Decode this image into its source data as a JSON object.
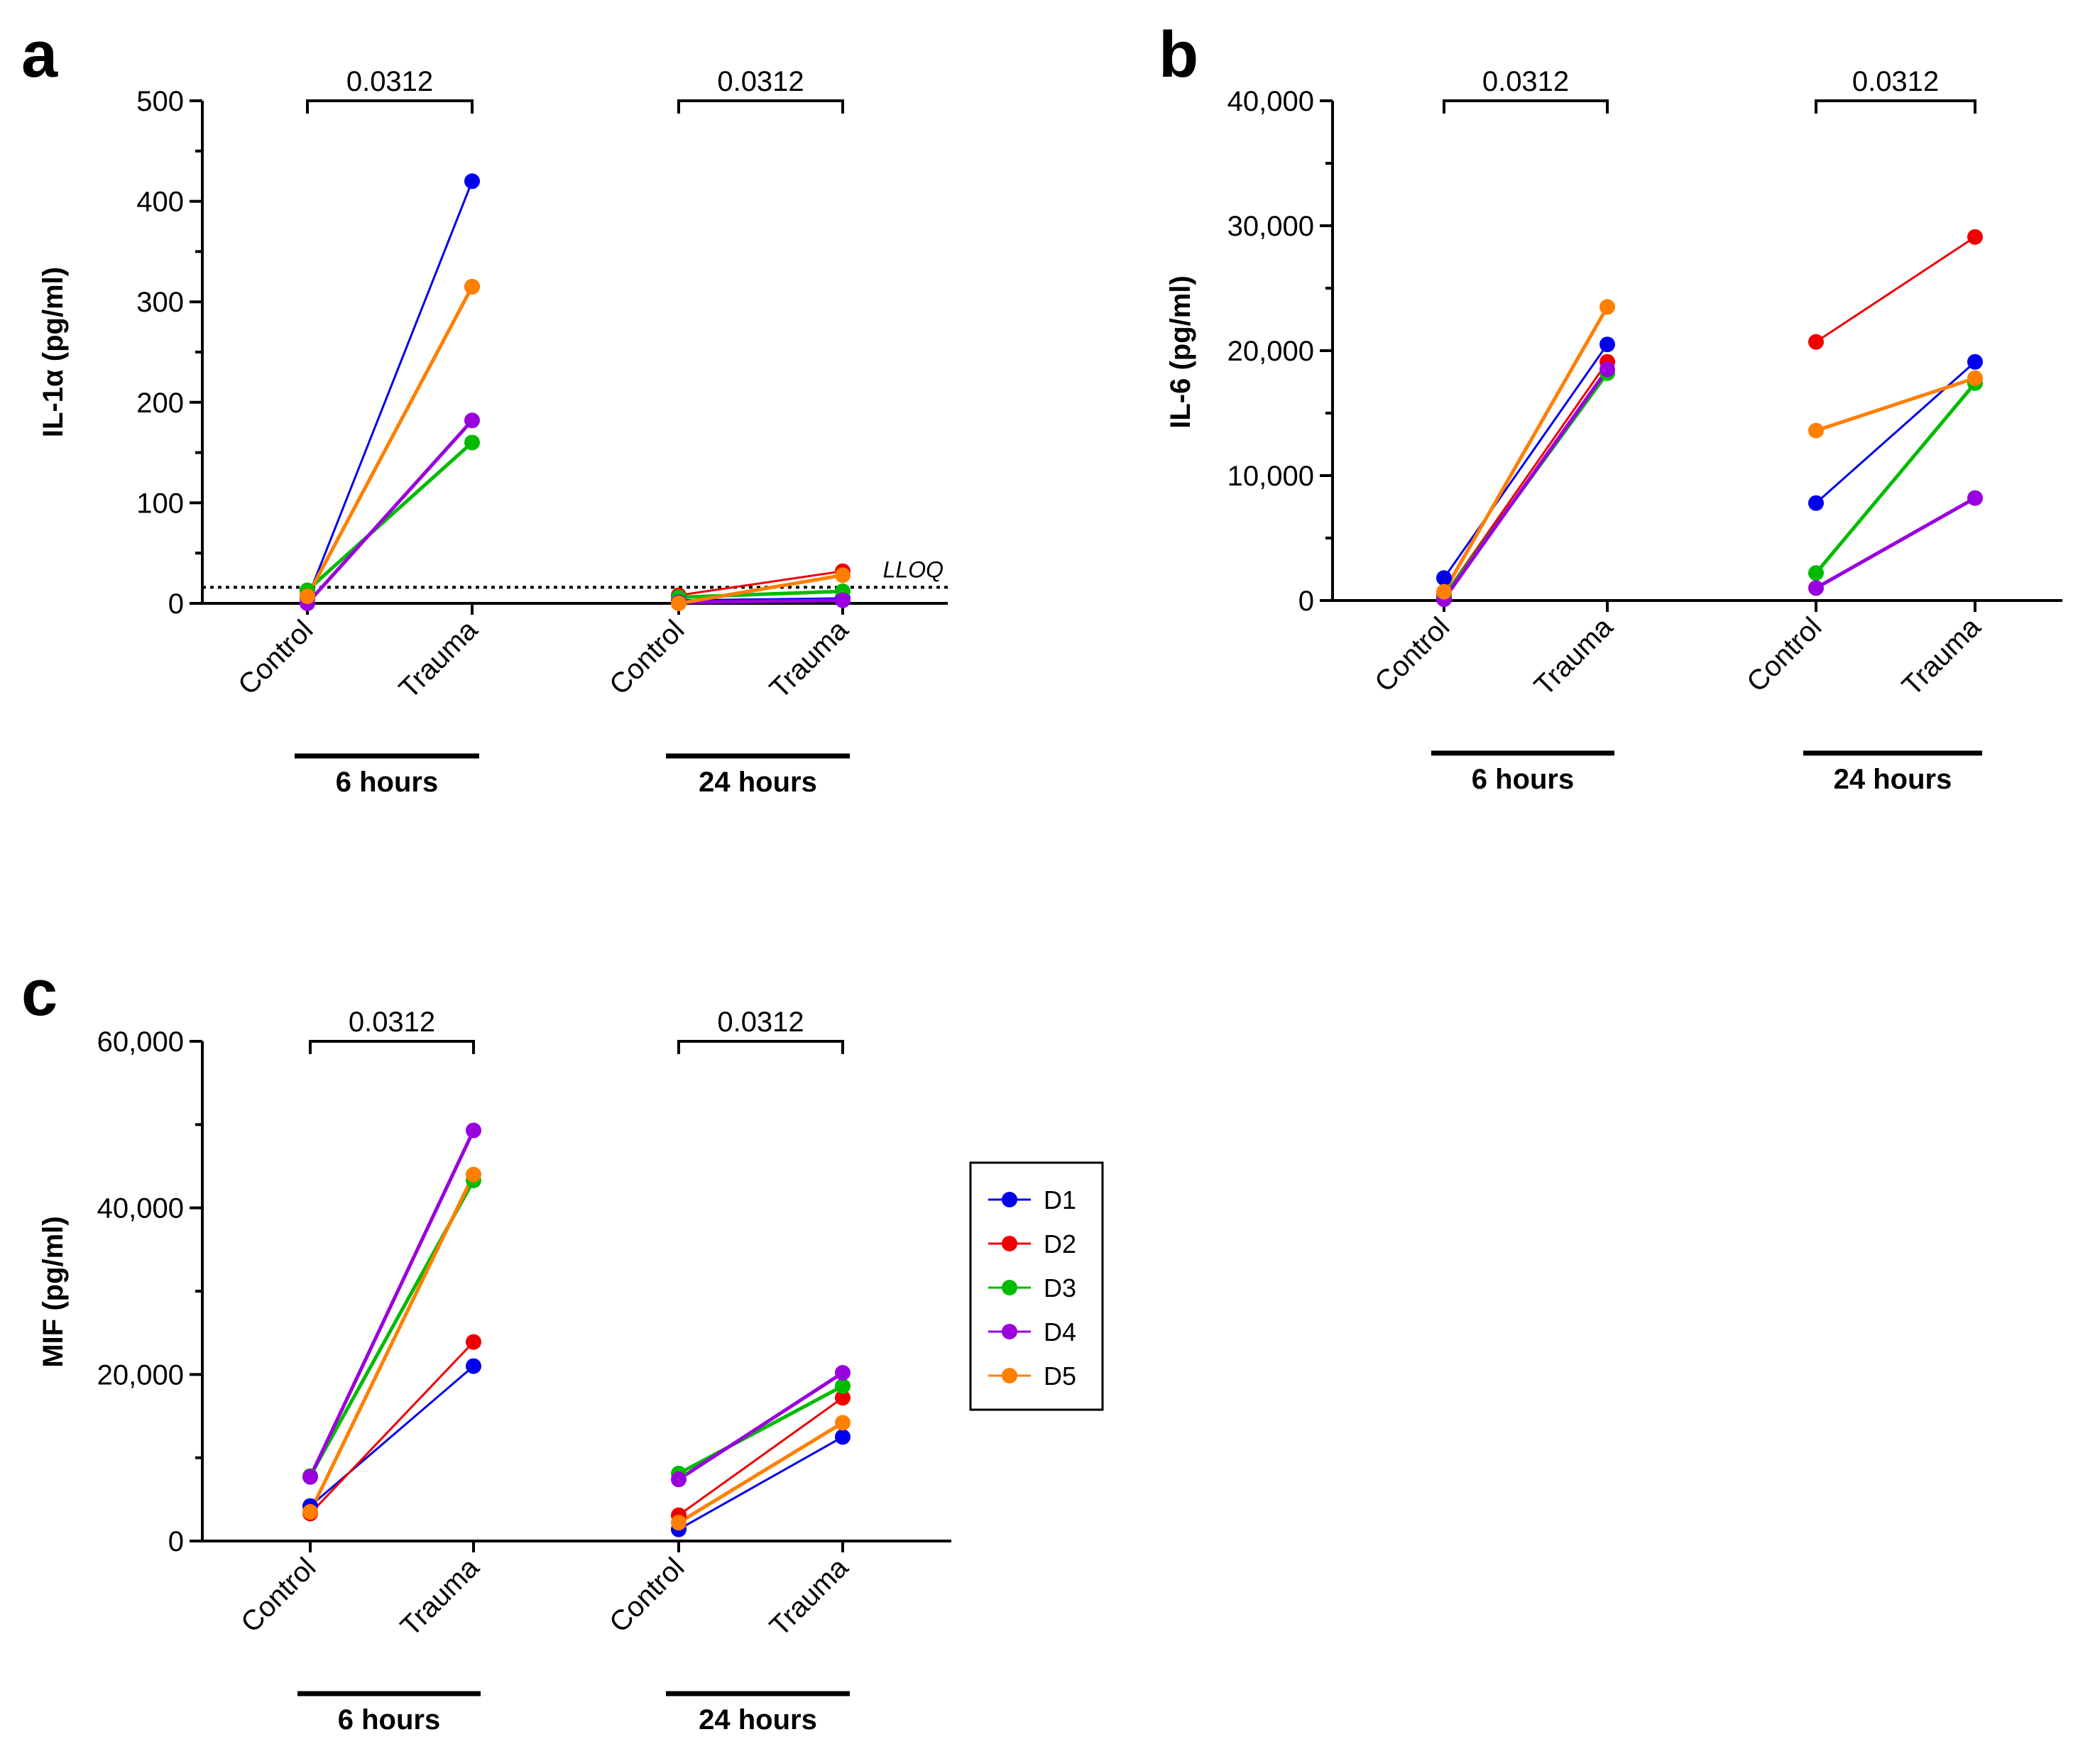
{
  "legend": {
    "entries": [
      {
        "name": "D1",
        "color": "#0000ee"
      },
      {
        "name": "D2",
        "color": "#ee0000"
      },
      {
        "name": "D3",
        "color": "#00bb00"
      },
      {
        "name": "D4",
        "color": "#9900dd"
      },
      {
        "name": "D5",
        "color": "#ff7f00"
      }
    ]
  },
  "chart_data": [
    {
      "panel": "a",
      "type": "line",
      "ylabel": "IL-1α (pg/ml)",
      "ylim": [
        0,
        500
      ],
      "yticks": [
        "0",
        "100",
        "200",
        "300",
        "400",
        "500"
      ],
      "groups": [
        {
          "label": "6 hours",
          "categories": [
            "Control",
            "Trauma"
          ],
          "pvalue": "0.0312"
        },
        {
          "label": "24 hours",
          "categories": [
            "Control",
            "Trauma"
          ],
          "pvalue": "0.0312"
        }
      ],
      "reference_line": {
        "label": "LLOQ",
        "value": 16
      },
      "series": [
        {
          "name": "D1",
          "values": [
            5,
            420,
            3,
            5
          ]
        },
        {
          "name": "D2",
          "values": [
            8,
            315,
            8,
            32
          ]
        },
        {
          "name": "D3",
          "values": [
            13,
            160,
            6,
            12
          ]
        },
        {
          "name": "D4",
          "values": [
            0,
            182,
            1,
            3
          ]
        },
        {
          "name": "D5",
          "values": [
            7,
            315,
            0,
            28
          ]
        }
      ]
    },
    {
      "panel": "b",
      "type": "line",
      "ylabel": "IL-6 (pg/ml)",
      "ylim": [
        0,
        40000
      ],
      "yticks": [
        "0",
        "10,000",
        "20,000",
        "30,000",
        "40,000"
      ],
      "groups": [
        {
          "label": "6 hours",
          "categories": [
            "Control",
            "Trauma"
          ],
          "pvalue": "0.0312"
        },
        {
          "label": "24 hours",
          "categories": [
            "Control",
            "Trauma"
          ],
          "pvalue": "0.0312"
        }
      ],
      "series": [
        {
          "name": "D1",
          "values": [
            1800,
            20500,
            7800,
            19100
          ]
        },
        {
          "name": "D2",
          "values": [
            400,
            19100,
            20700,
            29100
          ]
        },
        {
          "name": "D3",
          "values": [
            300,
            18200,
            2200,
            17400
          ]
        },
        {
          "name": "D4",
          "values": [
            100,
            18500,
            1000,
            8200
          ]
        },
        {
          "name": "D5",
          "values": [
            700,
            23500,
            13600,
            17800
          ]
        }
      ]
    },
    {
      "panel": "c",
      "type": "line",
      "ylabel": "MIF (pg/ml)",
      "ylim": [
        0,
        60000
      ],
      "yticks": [
        "0",
        "20,000",
        "40,000",
        "60,000"
      ],
      "groups": [
        {
          "label": "6 hours",
          "categories": [
            "Control",
            "Trauma"
          ],
          "pvalue": "0.0312"
        },
        {
          "label": "24 hours",
          "categories": [
            "Control",
            "Trauma"
          ],
          "pvalue": "0.0312"
        }
      ],
      "series": [
        {
          "name": "D1",
          "values": [
            4200,
            21000,
            1400,
            12500
          ]
        },
        {
          "name": "D2",
          "values": [
            3300,
            23900,
            3100,
            17200
          ]
        },
        {
          "name": "D3",
          "values": [
            7800,
            43300,
            8100,
            18600
          ]
        },
        {
          "name": "D4",
          "values": [
            7700,
            49300,
            7400,
            20200
          ]
        },
        {
          "name": "D5",
          "values": [
            3500,
            44000,
            2200,
            14200
          ]
        }
      ]
    }
  ]
}
